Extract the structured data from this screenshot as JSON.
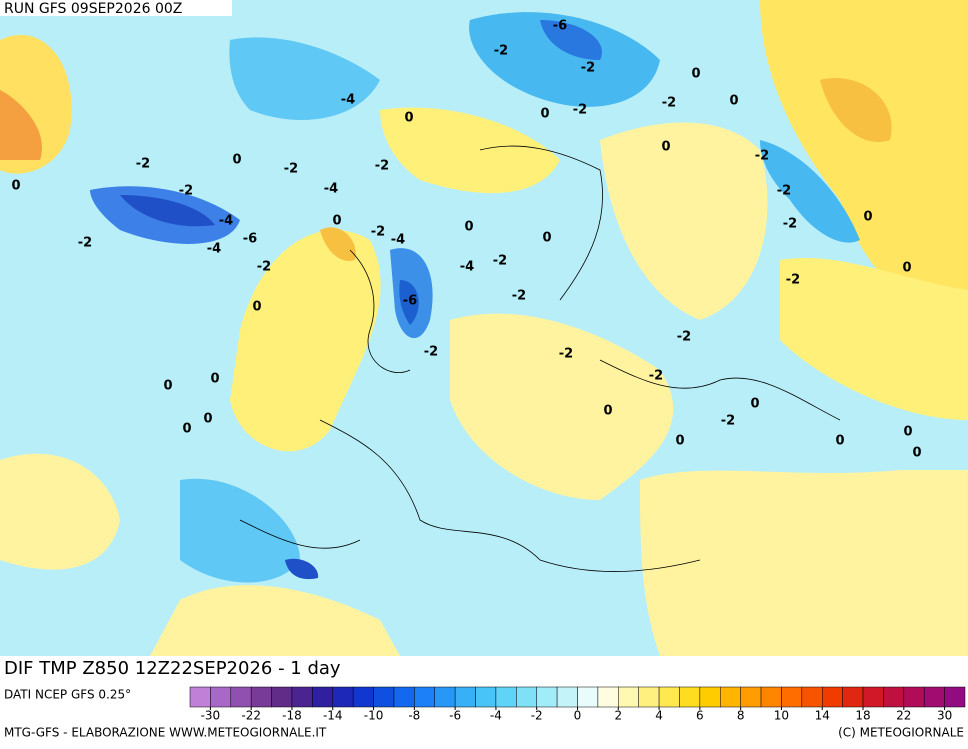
{
  "header": {
    "run": "RUN GFS 09SEP2026 00Z"
  },
  "map": {
    "title": "DIF TMP Z850 12Z22SEP2026 - 1 day",
    "contour_labels": [
      0,
      -2,
      -2,
      -4,
      -6,
      -4,
      -2,
      0,
      -2,
      -4,
      -2,
      0,
      -2,
      -2,
      0,
      0,
      -2,
      -4,
      -4,
      -6,
      -2,
      0,
      -2,
      -4,
      -6,
      -2,
      -2,
      0,
      0,
      -2,
      0,
      -2,
      0,
      0,
      -2,
      -2,
      -2,
      0,
      0,
      -2,
      -2,
      -2,
      0,
      0,
      -2,
      0,
      0,
      0,
      0,
      -2,
      0,
      0,
      0,
      0
    ]
  },
  "colorbar": {
    "source": "DATI NCEP GFS 0.25°",
    "colors": [
      "#c080d8",
      "#a868c8",
      "#9050b0",
      "#783c98",
      "#602c88",
      "#4a2490",
      "#3020a0",
      "#1e28b8",
      "#1038d0",
      "#1050e0",
      "#1468f0",
      "#1c80f8",
      "#2898f8",
      "#38b0f8",
      "#48c4f8",
      "#60d4f8",
      "#80e0f8",
      "#a0ecf8",
      "#c4f4fa",
      "#e8fcfc",
      "#fffce0",
      "#fff8b0",
      "#fff080",
      "#ffe850",
      "#ffdc20",
      "#ffcc00",
      "#ffb400",
      "#ff9c00",
      "#ff8400",
      "#ff6c00",
      "#f85400",
      "#f03c00",
      "#e02810",
      "#d01828",
      "#c01040",
      "#b00c58",
      "#a00c70",
      "#900c80"
    ],
    "labels": [
      -30,
      -22,
      -18,
      -14,
      -10,
      -8,
      -6,
      -4,
      -2,
      0,
      2,
      4,
      6,
      8,
      10,
      14,
      18,
      22,
      30
    ]
  },
  "footer": {
    "left": "MTG-GFS - ELABORAZIONE WWW.METEOGIORNALE.IT",
    "right": "(C) METEOGIORNALE"
  }
}
